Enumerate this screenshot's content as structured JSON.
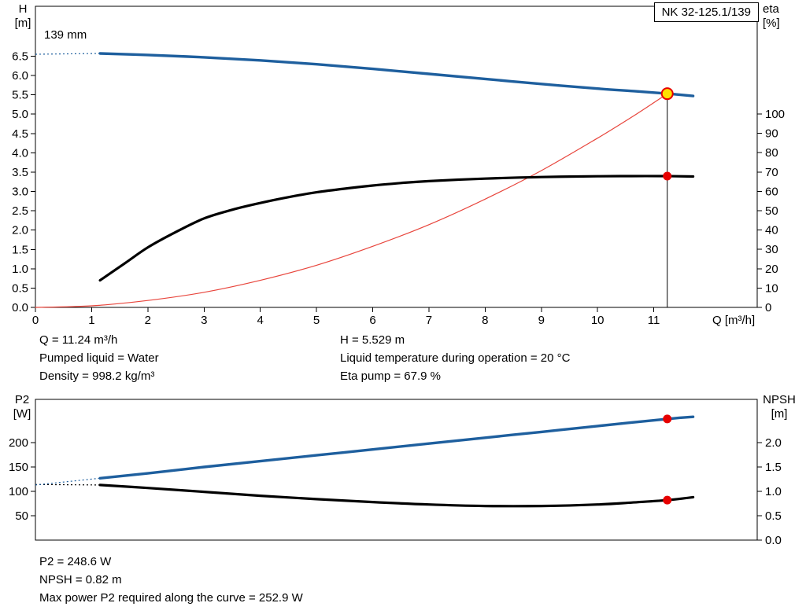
{
  "title_box": "NK 32-125.1/139",
  "colors": {
    "blue": "#1e5f9e",
    "black": "#000000",
    "red_thin": "#e8453c",
    "marker_red": "#e60000",
    "marker_yellow": "#ffe100"
  },
  "chart_data": [
    {
      "type": "line",
      "name": "qh-eta-chart",
      "x_axis": {
        "label": "Q [m³/h]",
        "range": [
          0,
          12.84
        ],
        "ticks": [
          "0",
          "1",
          "2",
          "3",
          "4",
          "5",
          "6",
          "7",
          "8",
          "9",
          "10",
          "11"
        ]
      },
      "y_left": {
        "label": [
          "H",
          "[m]"
        ],
        "range": [
          0,
          7.79
        ],
        "ticks": [
          "0.0",
          "0.5",
          "1.0",
          "1.5",
          "2.0",
          "2.5",
          "3.0",
          "3.5",
          "4.0",
          "4.5",
          "5.0",
          "5.5",
          "6.0",
          "6.5"
        ]
      },
      "y_right": {
        "label": [
          "eta",
          "[%]"
        ],
        "range": [
          0,
          155.7
        ],
        "ticks": [
          "0",
          "10",
          "20",
          "30",
          "40",
          "50",
          "60",
          "70",
          "80",
          "90",
          "100"
        ]
      },
      "annotation": "139 mm",
      "duty_line": {
        "x": 11.24,
        "y_left": 5.529
      },
      "series": [
        {
          "name": "system-curve",
          "axis": "left",
          "color": "red_thin",
          "width": 1.2,
          "points": [
            [
              0,
              0
            ],
            [
              1,
              0.04
            ],
            [
              2,
              0.18
            ],
            [
              3,
              0.39
            ],
            [
              4,
              0.7
            ],
            [
              5,
              1.09
            ],
            [
              6,
              1.58
            ],
            [
              7,
              2.14
            ],
            [
              8,
              2.8
            ],
            [
              9,
              3.54
            ],
            [
              10,
              4.38
            ],
            [
              10.7,
              5.01
            ],
            [
              11.24,
              5.529
            ]
          ]
        },
        {
          "name": "eta-curve",
          "axis": "right",
          "color": "black",
          "width": 3.2,
          "points": [
            [
              1.15,
              14
            ],
            [
              1.6,
              23
            ],
            [
              2,
              31
            ],
            [
              2.5,
              39
            ],
            [
              3,
              46
            ],
            [
              3.5,
              50.5
            ],
            [
              4,
              54
            ],
            [
              4.5,
              57
            ],
            [
              5,
              59.5
            ],
            [
              5.5,
              61.4
            ],
            [
              6,
              63
            ],
            [
              6.5,
              64.3
            ],
            [
              7,
              65.3
            ],
            [
              8,
              66.6
            ],
            [
              9,
              67.4
            ],
            [
              10,
              67.8
            ],
            [
              10.6,
              67.9
            ],
            [
              11.24,
              67.9
            ],
            [
              11.7,
              67.7
            ]
          ]
        },
        {
          "name": "head-curve-leader",
          "axis": "left",
          "color": "blue",
          "width": 1.2,
          "dash": [
            2,
            3
          ],
          "points": [
            [
              0,
              6.55
            ],
            [
              1.15,
              6.57
            ]
          ]
        },
        {
          "name": "head-curve",
          "axis": "left",
          "color": "blue",
          "width": 3.4,
          "points": [
            [
              1.15,
              6.57
            ],
            [
              2,
              6.53
            ],
            [
              3,
              6.47
            ],
            [
              4,
              6.39
            ],
            [
              5,
              6.29
            ],
            [
              6,
              6.17
            ],
            [
              7,
              6.04
            ],
            [
              8,
              5.91
            ],
            [
              9,
              5.78
            ],
            [
              10,
              5.66
            ],
            [
              10.7,
              5.59
            ],
            [
              11.24,
              5.53
            ],
            [
              11.7,
              5.47
            ]
          ]
        }
      ],
      "markers": [
        {
          "name": "duty-point-marker",
          "x": 11.24,
          "y": 5.529,
          "axis": "left",
          "r": 7,
          "fill": "marker_yellow",
          "stroke": "marker_red",
          "stroke_width": 2
        },
        {
          "name": "eta-point-marker",
          "x": 11.24,
          "y": 67.9,
          "axis": "right",
          "r": 5.5,
          "fill": "marker_red"
        }
      ]
    },
    {
      "type": "line",
      "name": "p2-npsh-chart",
      "x_axis": {
        "label": "",
        "range": [
          0,
          12.84
        ],
        "ticks": []
      },
      "y_left": {
        "label": [
          "P2",
          "[W]"
        ],
        "range": [
          0,
          288.7
        ],
        "ticks": [
          "50",
          "100",
          "150",
          "200"
        ]
      },
      "y_right": {
        "label": [
          "NPSH",
          "[m]"
        ],
        "range": [
          0,
          2.887
        ],
        "ticks": [
          "0.0",
          "0.5",
          "1.0",
          "1.5",
          "2.0"
        ]
      },
      "series": [
        {
          "name": "npsh-curve-leader",
          "axis": "right",
          "color": "black",
          "width": 1.2,
          "dash": [
            2,
            3
          ],
          "points": [
            [
              0,
              1.14
            ],
            [
              1.15,
              1.13
            ]
          ]
        },
        {
          "name": "npsh-curve",
          "axis": "right",
          "color": "black",
          "width": 3.2,
          "points": [
            [
              1.15,
              1.13
            ],
            [
              2,
              1.07
            ],
            [
              3,
              0.99
            ],
            [
              4,
              0.91
            ],
            [
              5,
              0.84
            ],
            [
              6,
              0.78
            ],
            [
              7,
              0.73
            ],
            [
              8,
              0.7
            ],
            [
              9,
              0.7
            ],
            [
              10,
              0.73
            ],
            [
              10.6,
              0.77
            ],
            [
              11.24,
              0.82
            ],
            [
              11.7,
              0.88
            ]
          ]
        },
        {
          "name": "p2-curve-leader",
          "axis": "left",
          "color": "blue",
          "width": 1.2,
          "dash": [
            2,
            3
          ],
          "points": [
            [
              0,
              113
            ],
            [
              1.15,
              127
            ]
          ]
        },
        {
          "name": "p2-curve",
          "axis": "left",
          "color": "blue",
          "width": 3.4,
          "points": [
            [
              1.15,
              127
            ],
            [
              2,
              137
            ],
            [
              3,
              150
            ],
            [
              4,
              162
            ],
            [
              5,
              174
            ],
            [
              6,
              186
            ],
            [
              7,
              198
            ],
            [
              8,
              210
            ],
            [
              9,
              222
            ],
            [
              10,
              234
            ],
            [
              11.24,
              248.6
            ],
            [
              11.7,
              252.9
            ]
          ]
        }
      ],
      "markers": [
        {
          "name": "p2-point-marker",
          "x": 11.24,
          "y": 248.6,
          "axis": "left",
          "r": 5.5,
          "fill": "marker_red"
        },
        {
          "name": "npsh-point-marker",
          "x": 11.24,
          "y": 0.82,
          "axis": "right",
          "r": 5.5,
          "fill": "marker_red"
        }
      ]
    }
  ],
  "info": {
    "q": "Q = 11.24 m³/h",
    "pumped_liquid": "Pumped liquid = Water",
    "density": "Density = 998.2 kg/m³",
    "h": "H = 5.529 m",
    "temp": "Liquid temperature during operation = 20 °C",
    "eta": "Eta pump = 67.9 %",
    "p2": "P2 = 248.6 W",
    "npsh": "NPSH = 0.82 m",
    "max_power": "Max power P2 required along the curve = 252.9 W"
  }
}
